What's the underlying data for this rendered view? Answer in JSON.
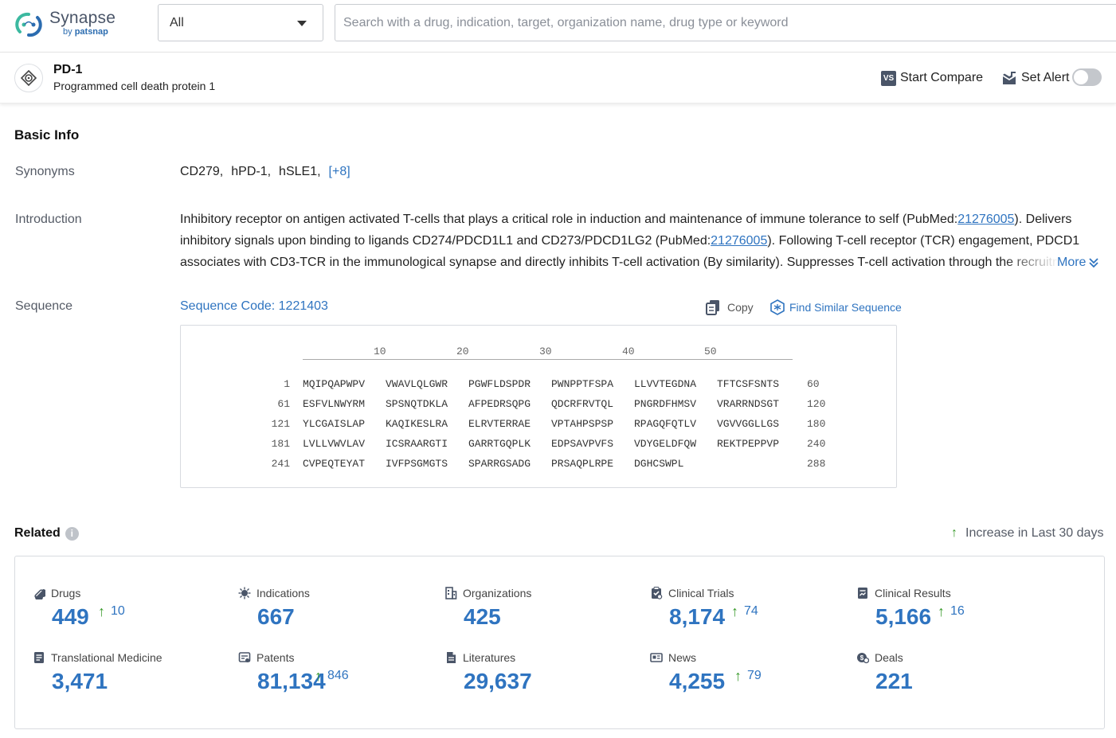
{
  "header": {
    "logo_name": "Synapse",
    "logo_by": "by",
    "logo_brand": "patsnap",
    "scope_select": "All",
    "search_placeholder": "Search with a drug, indication, target, organization name, drug type or keyword"
  },
  "entity": {
    "title": "PD-1",
    "subtitle": "Programmed cell death protein 1",
    "compare_icon_text": "VS",
    "compare_label": "Start Compare",
    "alert_label": "Set Alert",
    "alert_on": false
  },
  "basic_info": {
    "title": "Basic Info",
    "synonyms_label": "Synonyms",
    "synonyms": [
      "CD279,",
      "hPD-1,",
      "hSLE1,"
    ],
    "synonyms_more": "[+8]",
    "introduction_label": "Introduction",
    "intro": {
      "p1": "Inhibitory receptor on antigen activated T-cells that plays a critical role in induction and maintenance of immune tolerance to self (PubMed:",
      "ref1": "21276005",
      "p2": "). Delivers inhibitory signals upon binding to ligands CD274/PDCD1L1 and CD273/PDCD1LG2 (PubMed:",
      "ref2": "21276005",
      "p3": "). Following T-cell receptor (TCR) engagement, PDCD1 associates with CD3-TCR in the immunological synapse and directly inhibits T-cell activation (By similarity). Suppresses T-cell activation through the recruitment"
    },
    "more_label": "More",
    "sequence_label": "Sequence",
    "sequence_code": "Sequence Code: 1221403",
    "copy_label": "Copy",
    "find_similar_label": "Find Similar Sequence",
    "ruler": [
      "10",
      "20",
      "30",
      "40",
      "50"
    ],
    "sequence_rows": [
      {
        "start": "1",
        "chunks": [
          "MQIPQAPWPV",
          "VWAVLQLGWR",
          "PGWFLDSPDR",
          "PWNPPTFSPA",
          "LLVVTEGDNA",
          "TFTCSFSNTS"
        ],
        "end": "60"
      },
      {
        "start": "61",
        "chunks": [
          "ESFVLNWYRM",
          "SPSNQTDKLA",
          "AFPEDRSQPG",
          "QDCRFRVTQL",
          "PNGRDFHMSV",
          "VRARRNDSGT"
        ],
        "end": "120"
      },
      {
        "start": "121",
        "chunks": [
          "YLCGAISLAP",
          "KAQIKESLRA",
          "ELRVTERRAE",
          "VPTAHPSPSP",
          "RPAGQFQTLV",
          "VGVVGGLLGS"
        ],
        "end": "180"
      },
      {
        "start": "181",
        "chunks": [
          "LVLLVWVLAV",
          "ICSRAARGTI",
          "GARRTGQPLK",
          "EDPSAVPVFS",
          "VDYGELDFQW",
          "REKTPEPPVP"
        ],
        "end": "240"
      },
      {
        "start": "241",
        "chunks": [
          "CVPEQTEYAT",
          "IVFPSGMGTS",
          "SPARRGSADG",
          "PRSAQPLRPE",
          "DGHCSWPL",
          ""
        ],
        "end": "288"
      }
    ]
  },
  "related": {
    "title": "Related",
    "info_icon_text": "i",
    "increase_note": "Increase in Last 30 days",
    "arrow_glyph": "↑",
    "stats": [
      {
        "label": "Drugs",
        "value": "449",
        "increase": "10",
        "icon": "pill-icon"
      },
      {
        "label": "Indications",
        "value": "667",
        "increase": "",
        "icon": "virus-icon"
      },
      {
        "label": "Organizations",
        "value": "425",
        "increase": "",
        "icon": "building-icon"
      },
      {
        "label": "Clinical Trials",
        "value": "8,174",
        "increase": "74",
        "icon": "clipboard-icon"
      },
      {
        "label": "Clinical Results",
        "value": "5,166",
        "increase": "16",
        "icon": "report-icon"
      },
      {
        "label": "Translational Medicine",
        "value": "3,471",
        "increase": "",
        "icon": "document-icon"
      },
      {
        "label": "Patents",
        "value": "81,134",
        "increase": "846",
        "icon": "patent-icon"
      },
      {
        "label": "Literatures",
        "value": "29,637",
        "increase": "",
        "icon": "literature-icon"
      },
      {
        "label": "News",
        "value": "4,255",
        "increase": "79",
        "icon": "newspaper-icon"
      },
      {
        "label": "Deals",
        "value": "221",
        "increase": "",
        "icon": "handshake-icon"
      }
    ]
  },
  "colors": {
    "accent": "#2f74c0",
    "increase_green": "#3a9b2c",
    "logo_green": "#3cb9a0",
    "logo_blue": "#2b6cb0"
  }
}
